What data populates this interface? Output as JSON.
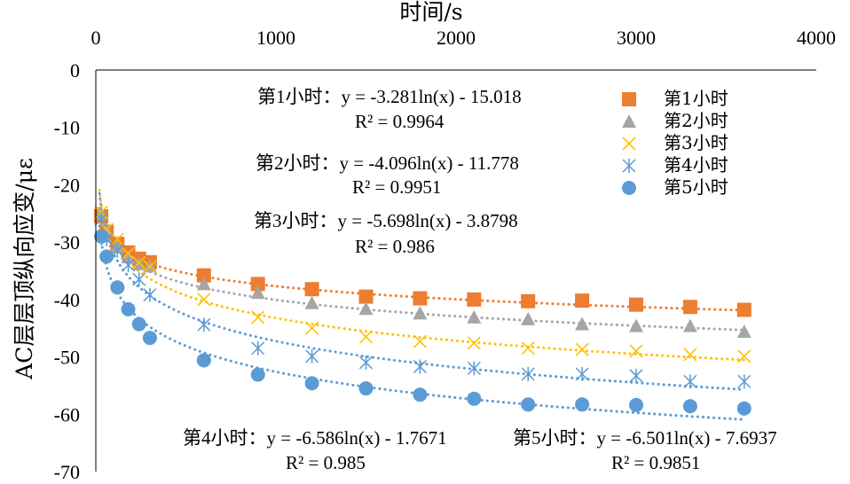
{
  "chart_data": {
    "type": "scatter",
    "title": "",
    "xlabel": "时间/s",
    "ylabel": "AC层层顶纵向应变/με",
    "xlim": [
      0,
      4000
    ],
    "ylim": [
      -70,
      0
    ],
    "xticks": [
      0,
      1000,
      2000,
      3000,
      4000
    ],
    "yticks": [
      0,
      -10,
      -20,
      -30,
      -40,
      -50,
      -60,
      -70
    ],
    "xtick_labels": [
      "0",
      "1000",
      "2000",
      "3000",
      "4000"
    ],
    "ytick_labels": [
      "0",
      "-10",
      "-20",
      "-30",
      "-40",
      "-50",
      "-60",
      "-70"
    ],
    "x_axis_position": "top",
    "legend_position": "top-right",
    "series": [
      {
        "name": "第1小时",
        "color": "#ED7D31",
        "marker": "square",
        "x": [
          30,
          60,
          120,
          180,
          240,
          300,
          600,
          900,
          1200,
          1500,
          1800,
          2100,
          2400,
          2700,
          3000,
          3300,
          3600
        ],
        "y": [
          -25.5,
          -28.2,
          -30.3,
          -31.8,
          -32.9,
          -33.5,
          -35.8,
          -37.3,
          -38.2,
          -39.5,
          -39.8,
          -40.0,
          -40.3,
          -40.2,
          -40.9,
          -41.3,
          -41.8
        ],
        "fit": {
          "a": -3.281,
          "b": -15.018
        },
        "equation": "第1小时：y = -3.281ln(x) - 15.018",
        "r2": "R² = 0.9964"
      },
      {
        "name": "第2小时",
        "color": "#A5A5A5",
        "marker": "triangle",
        "x": [
          30,
          60,
          120,
          180,
          240,
          300,
          600,
          900,
          1200,
          1500,
          1800,
          2100,
          2400,
          2700,
          3000,
          3300,
          3600
        ],
        "y": [
          -25.0,
          -28.0,
          -30.8,
          -32.6,
          -33.8,
          -34.2,
          -37.3,
          -38.8,
          -40.6,
          -41.6,
          -42.4,
          -43.1,
          -43.4,
          -44.3,
          -44.6,
          -44.6,
          -45.6
        ],
        "fit": {
          "a": -4.096,
          "b": -11.778
        },
        "equation": "第2小时：y = -4.096ln(x) - 11.778",
        "r2": "R² = 0.9951"
      },
      {
        "name": "第3小时",
        "color": "#FFC000",
        "marker": "x",
        "x": [
          30,
          60,
          120,
          180,
          240,
          300,
          600,
          900,
          1200,
          1500,
          1800,
          2100,
          2400,
          2700,
          3000,
          3300,
          3600
        ],
        "y": [
          -24.8,
          -27.8,
          -29.5,
          -32.0,
          -33.6,
          -34.3,
          -40.0,
          -43.1,
          -45.0,
          -46.5,
          -47.3,
          -47.6,
          -48.5,
          -48.7,
          -49.0,
          -49.6,
          -49.9
        ],
        "fit": {
          "a": -5.698,
          "b": -3.8798
        },
        "equation": "第3小时：y = -5.698ln(x) - 3.8798",
        "r2": "R² = 0.986"
      },
      {
        "name": "第4小时",
        "color": "#5B9BD5",
        "marker": "asterisk",
        "x": [
          30,
          60,
          120,
          180,
          240,
          300,
          600,
          900,
          1200,
          1500,
          1800,
          2100,
          2400,
          2700,
          3000,
          3300,
          3600
        ],
        "y": [
          -26.0,
          -29.5,
          -31.5,
          -34.0,
          -36.5,
          -39.2,
          -44.4,
          -48.5,
          -49.9,
          -51.0,
          -51.7,
          -52.0,
          -53.0,
          -53.0,
          -53.3,
          -54.3,
          -54.3
        ],
        "fit": {
          "a": -6.586,
          "b": -1.7671
        },
        "equation": "第4小时：y = -6.586ln(x) - 1.7671",
        "r2": "R² = 0.985"
      },
      {
        "name": "第5小时",
        "color": "#5B9BD5",
        "marker": "circle",
        "x": [
          30,
          60,
          120,
          180,
          240,
          300,
          600,
          900,
          1200,
          1500,
          1800,
          2100,
          2400,
          2700,
          3000,
          3300,
          3600
        ],
        "y": [
          -29.0,
          -32.5,
          -37.9,
          -41.7,
          -44.3,
          -46.7,
          -50.6,
          -53.1,
          -54.6,
          -55.5,
          -56.6,
          -57.3,
          -58.3,
          -58.3,
          -58.4,
          -58.6,
          -59.0
        ],
        "fit": {
          "a": -6.501,
          "b": -7.6937
        },
        "equation": "第5小时：y = -6.501ln(x) - 7.6937",
        "r2": "R² = 0.9851"
      }
    ]
  }
}
